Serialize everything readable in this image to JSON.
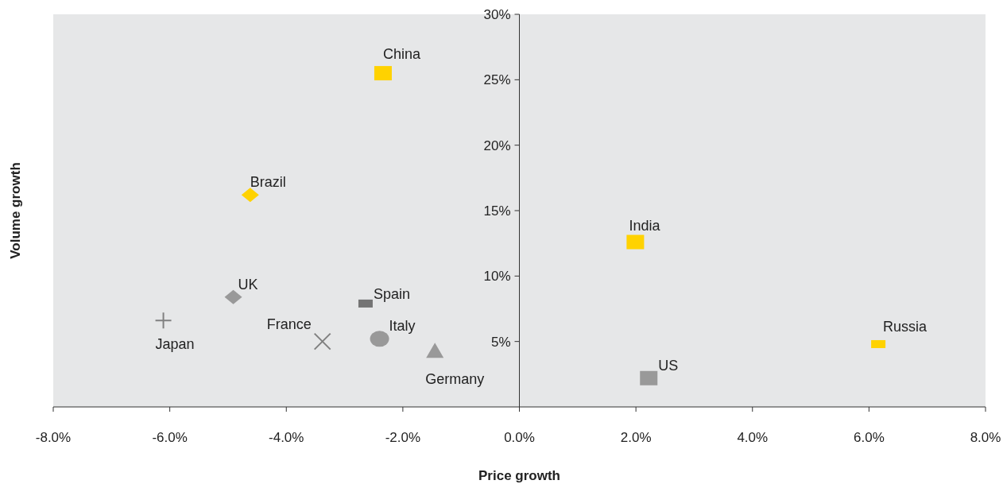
{
  "chart_data": {
    "type": "scatter",
    "xlabel": "Price growth",
    "ylabel": "Volume growth",
    "xlim": [
      -8,
      8
    ],
    "ylim": [
      0,
      30
    ],
    "xticks": [
      {
        "value": -8,
        "label": "-8.0%"
      },
      {
        "value": -6,
        "label": "-6.0%"
      },
      {
        "value": -4,
        "label": "-4.0%"
      },
      {
        "value": -2,
        "label": "-2.0%"
      },
      {
        "value": 0,
        "label": "0.0%"
      },
      {
        "value": 2,
        "label": "2.0%"
      },
      {
        "value": 4,
        "label": "4.0%"
      },
      {
        "value": 6,
        "label": "6.0%"
      },
      {
        "value": 8,
        "label": "8.0%"
      }
    ],
    "yticks": [
      {
        "value": 5,
        "label": "5%"
      },
      {
        "value": 10,
        "label": "10%"
      },
      {
        "value": 15,
        "label": "15%"
      },
      {
        "value": 20,
        "label": "20%"
      },
      {
        "value": 25,
        "label": "25%"
      },
      {
        "value": 30,
        "label": "30%"
      }
    ],
    "grid": false,
    "series": [
      {
        "name": "China",
        "color": "#ffd200",
        "marker": "square",
        "x": [
          -2.34
        ],
        "values": [
          25.5
        ]
      },
      {
        "name": "Brazil",
        "color": "#ffd200",
        "marker": "diamond",
        "x": [
          -4.62
        ],
        "values": [
          16.2
        ]
      },
      {
        "name": "India",
        "color": "#ffd200",
        "marker": "square",
        "x": [
          1.99
        ],
        "values": [
          12.6
        ]
      },
      {
        "name": "UK",
        "color": "#999999",
        "marker": "diamond",
        "x": [
          -4.91
        ],
        "values": [
          8.4
        ]
      },
      {
        "name": "Spain",
        "color": "#747474",
        "marker": "square",
        "x": [
          -2.64
        ],
        "values": [
          7.9
        ]
      },
      {
        "name": "Japan",
        "color": "#808080",
        "marker": "plus",
        "x": [
          -6.11
        ],
        "values": [
          6.6
        ]
      },
      {
        "name": "France",
        "color": "#808080",
        "marker": "cross",
        "x": [
          -3.38
        ],
        "values": [
          5.0
        ]
      },
      {
        "name": "Italy",
        "color": "#999999",
        "marker": "circle",
        "x": [
          -2.4
        ],
        "values": [
          5.2
        ]
      },
      {
        "name": "Germany",
        "color": "#999999",
        "marker": "triangle",
        "x": [
          -1.45
        ],
        "values": [
          4.3
        ]
      },
      {
        "name": "Russia",
        "color": "#ffd200",
        "marker": "square",
        "x": [
          6.16
        ],
        "values": [
          4.8
        ]
      },
      {
        "name": "US",
        "color": "#999999",
        "marker": "square",
        "x": [
          2.22
        ],
        "values": [
          2.2
        ]
      }
    ]
  }
}
